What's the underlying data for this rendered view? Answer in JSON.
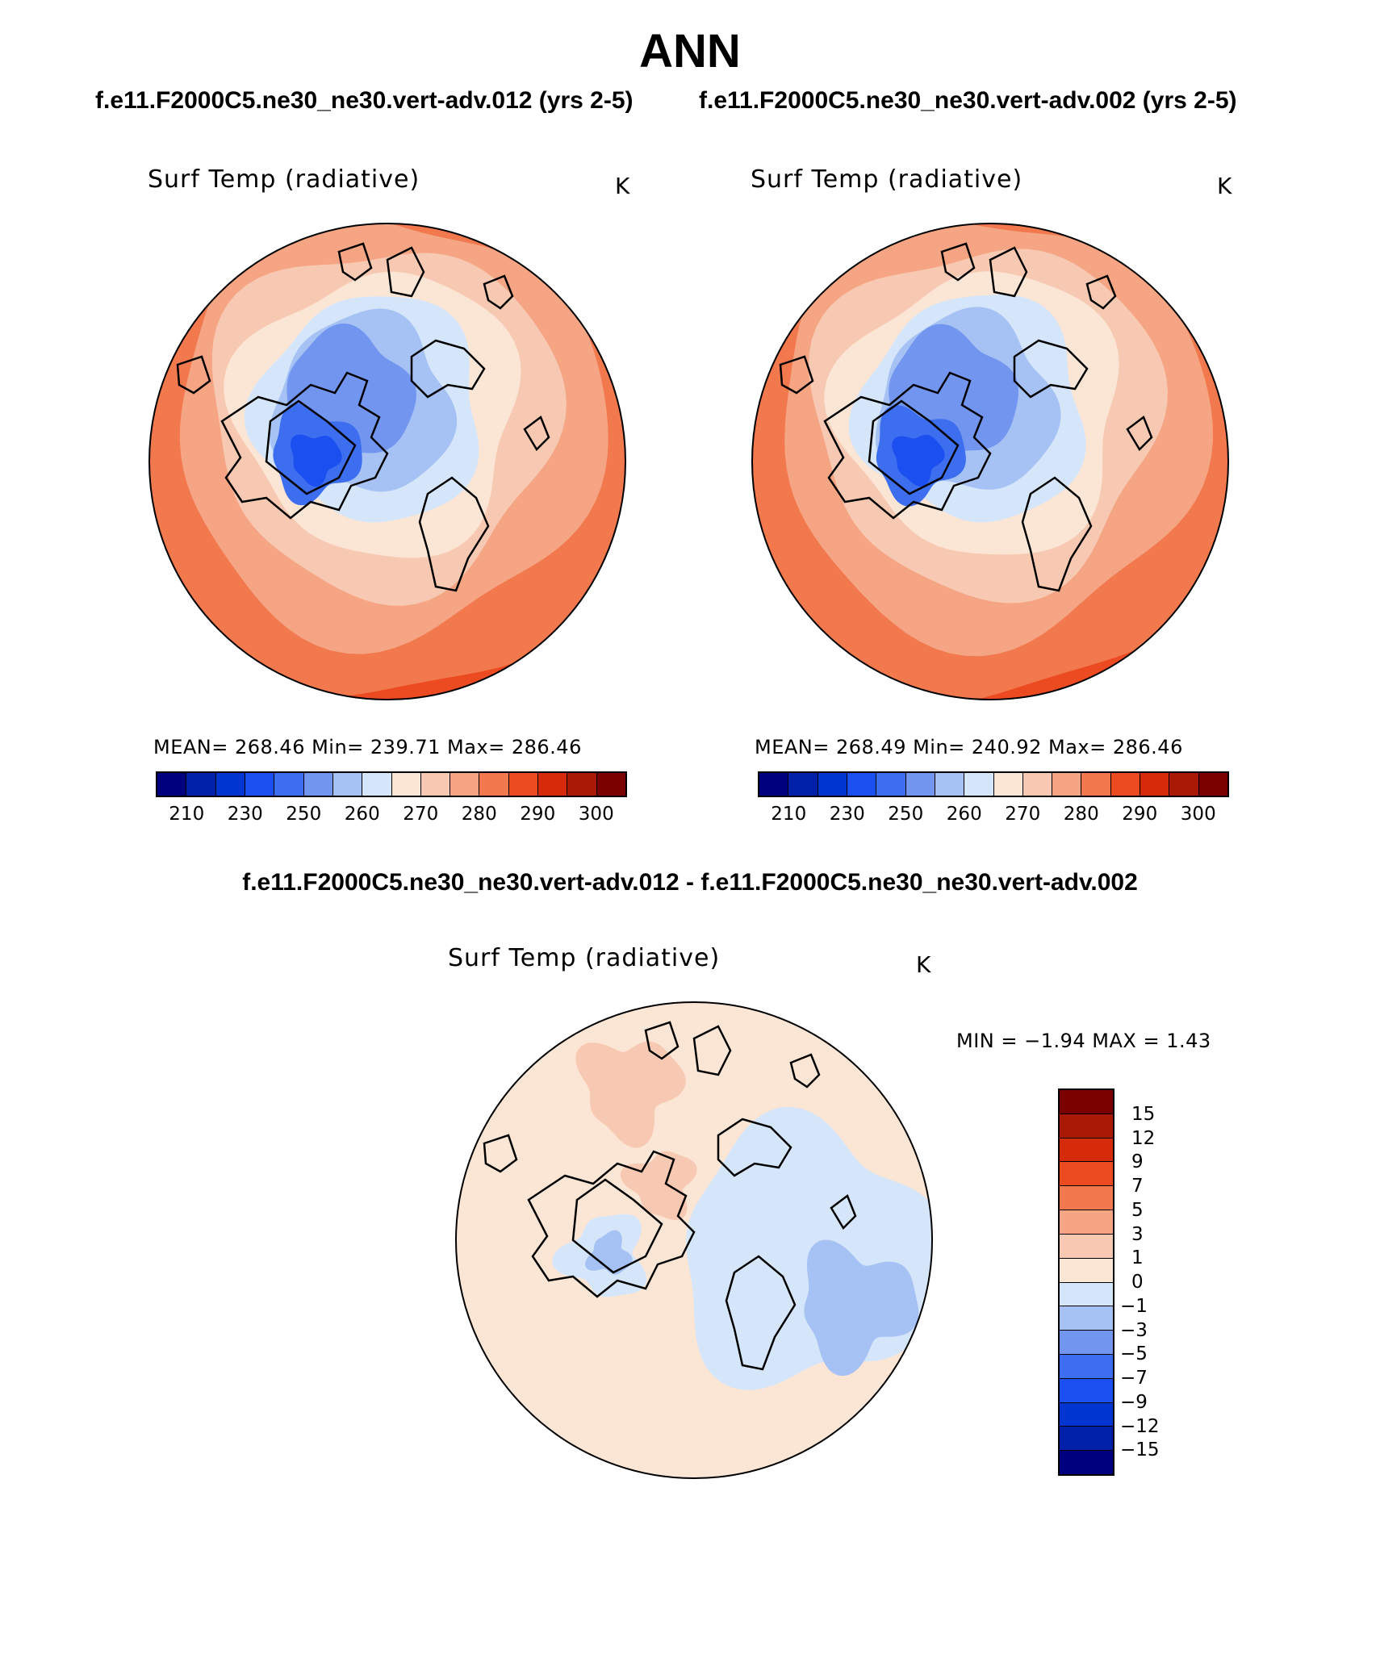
{
  "header": {
    "title": "ANN",
    "case1": "f.e11.F2000C5.ne30_ne30.vert-adv.012 (yrs 2-5)",
    "case2": "f.e11.F2000C5.ne30_ne30.vert-adv.002 (yrs 2-5)",
    "diff_title": "f.e11.F2000C5.ne30_ne30.vert-adv.012 - f.e11.F2000C5.ne30_ne30.vert-adv.002"
  },
  "panels": [
    {
      "variable": "Surf Temp (radiative)",
      "units": "K",
      "stats": "MEAN=  268.46   Min=  239.71   Max=  286.46",
      "mean": 268.46,
      "min": 239.71,
      "max": 286.46,
      "map_icon": "arctic-polar-stereographic-map"
    },
    {
      "variable": "Surf Temp (radiative)",
      "units": "K",
      "stats": "MEAN=  268.49   Min=  240.92   Max=  286.46",
      "mean": 268.49,
      "min": 240.92,
      "max": 286.46,
      "map_icon": "arctic-polar-stereographic-map"
    }
  ],
  "diff_panel": {
    "variable": "Surf Temp (radiative)",
    "units": "K",
    "stats": "MIN =   −1.94  MAX =    1.43",
    "min": -1.94,
    "max": 1.43,
    "map_icon": "arctic-polar-stereographic-map"
  },
  "colorbar": {
    "labels": [
      "210",
      "230",
      "250",
      "260",
      "270",
      "280",
      "290",
      "300"
    ],
    "colors": [
      "#00007f",
      "#0020a8",
      "#0035d2",
      "#1c4ff0",
      "#3d6ef0",
      "#7296f0",
      "#a6c2f4",
      "#d6e6fa",
      "#fbe6d6",
      "#f8c9b2",
      "#f5a583",
      "#f2784e",
      "#ec4b22",
      "#d62b0b",
      "#a81a06",
      "#7a0000"
    ]
  },
  "diff_colorbar": {
    "labels": [
      "15",
      "12",
      "9",
      "7",
      "5",
      "3",
      "1",
      "0",
      "−1",
      "−3",
      "−5",
      "−7",
      "−9",
      "−12",
      "−15"
    ],
    "colors": [
      "#7a0000",
      "#a81a06",
      "#d62b0b",
      "#ec4b22",
      "#f2784e",
      "#f5a583",
      "#f8c9b2",
      "#fbe6d6",
      "#d6e6fa",
      "#a6c2f4",
      "#7296f0",
      "#3d6ef0",
      "#1c4ff0",
      "#0035d2",
      "#0020a8",
      "#00007f"
    ]
  }
}
